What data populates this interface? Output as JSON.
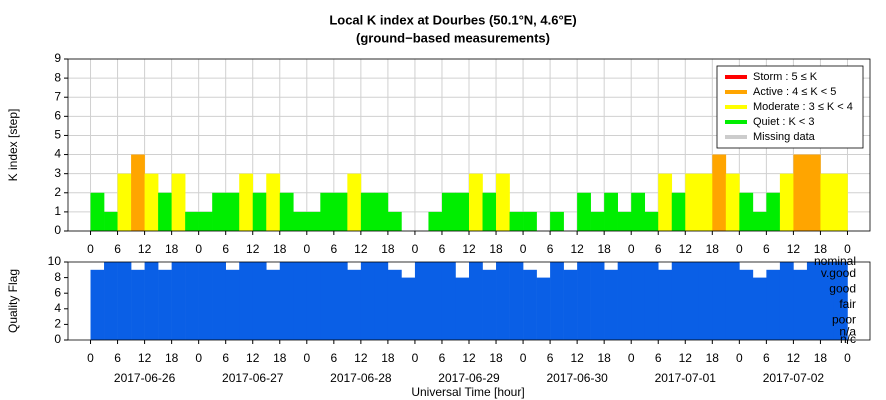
{
  "chart_data": [
    {
      "type": "bar",
      "title": "Local K index at Dourbes (50.1°N, 4.6°E)",
      "subtitle": "(ground−based measurements)",
      "ylabel": "K index [step]",
      "x": [
        0,
        3,
        6,
        9,
        12,
        15,
        18,
        21,
        24,
        27,
        30,
        33,
        36,
        39,
        42,
        45,
        48,
        51,
        54,
        57,
        60,
        63,
        66,
        69,
        72,
        75,
        78,
        81,
        84,
        87,
        90,
        93,
        96,
        99,
        102,
        105,
        108,
        111,
        114,
        117,
        120,
        123,
        126,
        129,
        132,
        135,
        138,
        141,
        144,
        147,
        150,
        153,
        156,
        159,
        162,
        165
      ],
      "values": [
        2,
        1,
        3,
        4,
        3,
        2,
        3,
        1,
        1,
        2,
        2,
        3,
        2,
        3,
        2,
        1,
        1,
        2,
        2,
        3,
        2,
        2,
        1,
        null,
        null,
        1,
        2,
        2,
        3,
        2,
        3,
        1,
        1,
        0,
        1,
        0,
        2,
        1,
        2,
        1,
        2,
        1,
        3,
        2,
        3,
        3,
        4,
        3,
        2,
        1,
        2,
        3,
        4,
        4,
        3,
        3
      ],
      "colors": [
        "#00ee00",
        "#00ee00",
        "#ffff00",
        "#ffa500",
        "#ffff00",
        "#00ee00",
        "#ffff00",
        "#00ee00",
        "#00ee00",
        "#00ee00",
        "#00ee00",
        "#ffff00",
        "#00ee00",
        "#ffff00",
        "#00ee00",
        "#00ee00",
        "#00ee00",
        "#00ee00",
        "#00ee00",
        "#ffff00",
        "#00ee00",
        "#00ee00",
        "#00ee00",
        null,
        null,
        "#00ee00",
        "#00ee00",
        "#00ee00",
        "#ffff00",
        "#00ee00",
        "#ffff00",
        "#00ee00",
        "#00ee00",
        "#00ee00",
        "#00ee00",
        "#00ee00",
        "#00ee00",
        "#00ee00",
        "#00ee00",
        "#00ee00",
        "#00ee00",
        "#00ee00",
        "#ffff00",
        "#00ee00",
        "#ffff00",
        "#ffff00",
        "#ffa500",
        "#ffff00",
        "#00ee00",
        "#00ee00",
        "#00ee00",
        "#ffff00",
        "#ffa500",
        "#ffa500",
        "#ffff00",
        "#ffff00"
      ],
      "bar_width": 3,
      "xlim": [
        -5,
        173
      ],
      "xticks": [
        0,
        6,
        12,
        18,
        {
          "value": 24,
          "label": "0"
        },
        {
          "value": 30,
          "label": "6"
        },
        {
          "value": 36,
          "label": "12"
        },
        {
          "value": 42,
          "label": "18"
        },
        {
          "value": 48,
          "label": "0"
        },
        {
          "value": 54,
          "label": "6"
        },
        {
          "value": 60,
          "label": "12"
        },
        {
          "value": 66,
          "label": "18"
        },
        {
          "value": 72,
          "label": "0"
        },
        {
          "value": 78,
          "label": "6"
        },
        {
          "value": 84,
          "label": "12"
        },
        {
          "value": 90,
          "label": "18"
        },
        {
          "value": 96,
          "label": "0"
        },
        {
          "value": 102,
          "label": "6"
        },
        {
          "value": 108,
          "label": "12"
        },
        {
          "value": 114,
          "label": "18"
        },
        {
          "value": 120,
          "label": "0"
        },
        {
          "value": 126,
          "label": "6"
        },
        {
          "value": 132,
          "label": "12"
        },
        {
          "value": 138,
          "label": "18"
        },
        {
          "value": 144,
          "label": "0"
        },
        {
          "value": 150,
          "label": "6"
        },
        {
          "value": 156,
          "label": "12"
        },
        {
          "value": 162,
          "label": "18"
        },
        {
          "value": 168,
          "label": "0"
        }
      ],
      "ylim": [
        0,
        9
      ],
      "yticks": [
        0,
        1,
        2,
        3,
        4,
        5,
        6,
        7,
        8,
        9
      ],
      "grid": true,
      "legend": "upper right",
      "legend_entries": [
        {
          "name": "Storm : 5 ≤ K",
          "color": "#ff0000"
        },
        {
          "name": "Active : 4 ≤ K < 5",
          "color": "#ffa500"
        },
        {
          "name": "Moderate : 3 ≤ K < 4",
          "color": "#ffff00"
        },
        {
          "name": "Quiet : K < 3",
          "color": "#00ee00"
        },
        {
          "name": "Missing data",
          "color": "#cccccc"
        }
      ]
    },
    {
      "type": "bar",
      "ylabel": "Quality Flag",
      "xlabel": "Universal Time [hour]",
      "color": "#0a5fe6",
      "x": [
        0,
        3,
        6,
        9,
        12,
        15,
        18,
        21,
        24,
        27,
        30,
        33,
        36,
        39,
        42,
        45,
        48,
        51,
        54,
        57,
        60,
        63,
        66,
        69,
        72,
        75,
        78,
        81,
        84,
        87,
        90,
        93,
        96,
        99,
        102,
        105,
        108,
        111,
        114,
        117,
        120,
        123,
        126,
        129,
        132,
        135,
        138,
        141,
        144,
        147,
        150,
        153,
        156,
        159,
        162,
        165
      ],
      "values": [
        9,
        10,
        10,
        9,
        10,
        9,
        10,
        10,
        10,
        10,
        9,
        10,
        10,
        9,
        10,
        10,
        10,
        10,
        10,
        9,
        10,
        10,
        9,
        8,
        10,
        10,
        10,
        8,
        10,
        9,
        10,
        10,
        9,
        8,
        10,
        9,
        10,
        10,
        9,
        10,
        10,
        10,
        9,
        10,
        10,
        10,
        10,
        10,
        9,
        8,
        9,
        10,
        9,
        10,
        10,
        10
      ],
      "bar_width": 3,
      "xlim": [
        -5,
        173
      ],
      "ylim": [
        0,
        10
      ],
      "yticks": [
        0,
        2,
        4,
        6,
        8,
        10
      ],
      "flag_labels": [
        {
          "value": 10,
          "label": "nominal"
        },
        {
          "value": 8.5,
          "label": "v.good"
        },
        {
          "value": 6.5,
          "label": "good"
        },
        {
          "value": 4.5,
          "label": "fair"
        },
        {
          "value": 2.5,
          "label": "poor"
        },
        {
          "value": 1,
          "label": "n/a"
        },
        {
          "value": 0,
          "label": "n/c"
        }
      ],
      "dates": [
        {
          "value": 12,
          "label": "2017-06-26"
        },
        {
          "value": 36,
          "label": "2017-06-27"
        },
        {
          "value": 60,
          "label": "2017-06-28"
        },
        {
          "value": 84,
          "label": "2017-06-29"
        },
        {
          "value": 108,
          "label": "2017-06-30"
        },
        {
          "value": 132,
          "label": "2017-07-01"
        },
        {
          "value": 156,
          "label": "2017-07-02"
        }
      ]
    }
  ]
}
